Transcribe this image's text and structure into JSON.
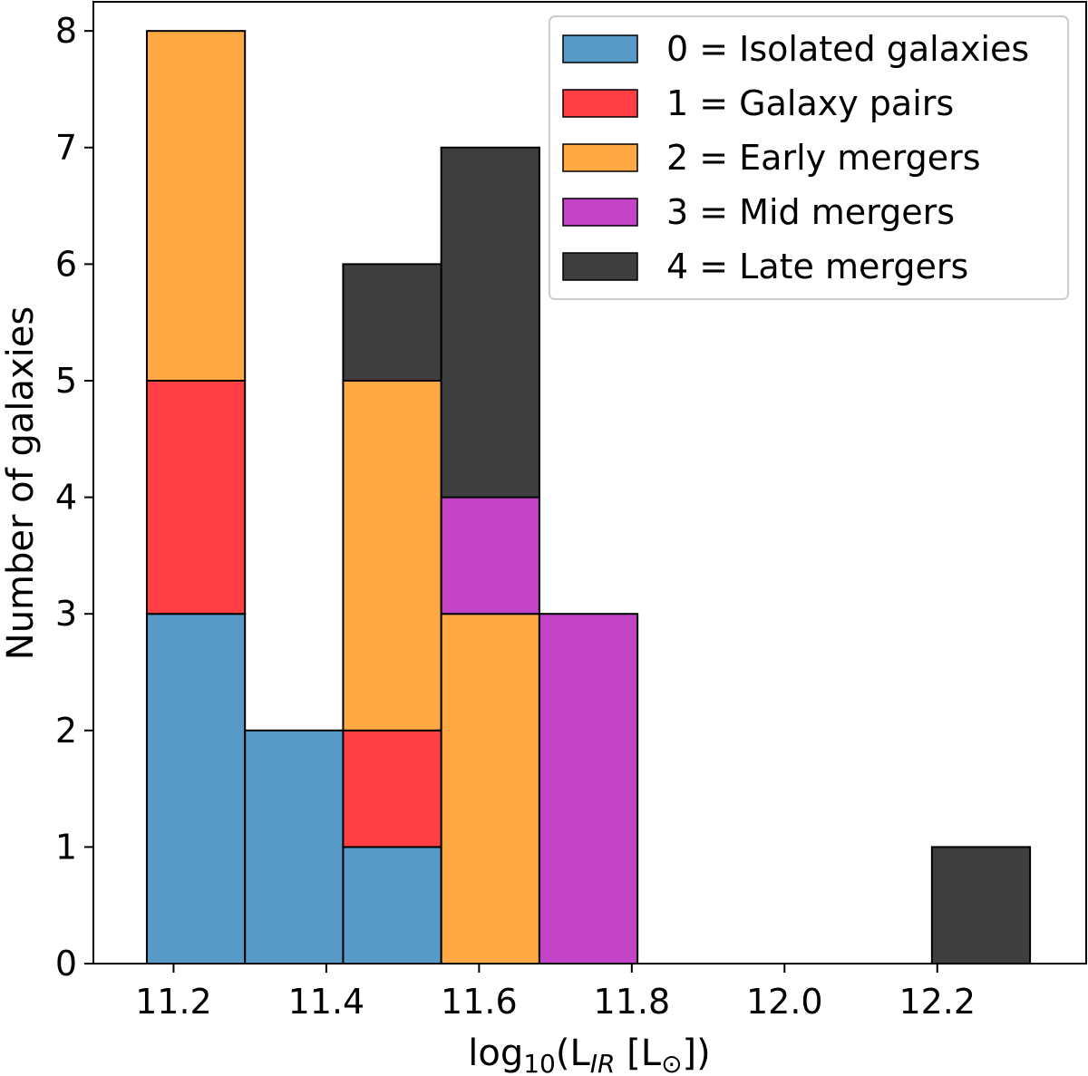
{
  "chart_data": {
    "type": "bar",
    "subtype": "stacked-histogram",
    "xlabel_parts": {
      "main": "log",
      "sub1": "10",
      "open": "(L",
      "sub2": "IR",
      "rest": " [L",
      "sun": "⊙",
      "close": "])"
    },
    "ylabel": "Number of galaxies",
    "xlim": [
      11.095,
      12.395
    ],
    "ylim": [
      0,
      8.25
    ],
    "xticks": [
      11.2,
      11.4,
      11.6,
      11.8,
      12.0,
      12.2
    ],
    "xtick_labels": [
      "11.2",
      "11.4",
      "11.6",
      "11.8",
      "12.0",
      "12.2"
    ],
    "yticks": [
      0,
      1,
      2,
      3,
      4,
      5,
      6,
      7,
      8
    ],
    "ytick_labels": [
      "0",
      "1",
      "2",
      "3",
      "4",
      "5",
      "6",
      "7",
      "8"
    ],
    "bin_edges": [
      11.165,
      11.2935,
      11.422,
      11.5505,
      11.679,
      11.8075,
      11.936,
      12.0645,
      12.193,
      12.3215
    ],
    "series": [
      {
        "name": "0 = Isolated galaxies",
        "color": "#5799c7",
        "values": [
          3,
          2,
          1,
          0,
          0,
          0,
          0,
          0,
          0
        ]
      },
      {
        "name": "1 = Galaxy pairs",
        "color": "#ff3f43",
        "values": [
          2,
          0,
          1,
          0,
          0,
          0,
          0,
          0,
          0
        ]
      },
      {
        "name": "2 = Early mergers",
        "color": "#fea943",
        "values": [
          3,
          0,
          3,
          3,
          0,
          0,
          0,
          0,
          0
        ]
      },
      {
        "name": "3 = Mid mergers",
        "color": "#c243c5",
        "values": [
          0,
          0,
          0,
          1,
          3,
          0,
          0,
          0,
          0
        ]
      },
      {
        "name": "4 = Late mergers",
        "color": "#3f3f3f",
        "values": [
          0,
          0,
          1,
          3,
          0,
          0,
          0,
          0,
          1
        ]
      }
    ],
    "legend_position": "top-right",
    "grid": false
  }
}
